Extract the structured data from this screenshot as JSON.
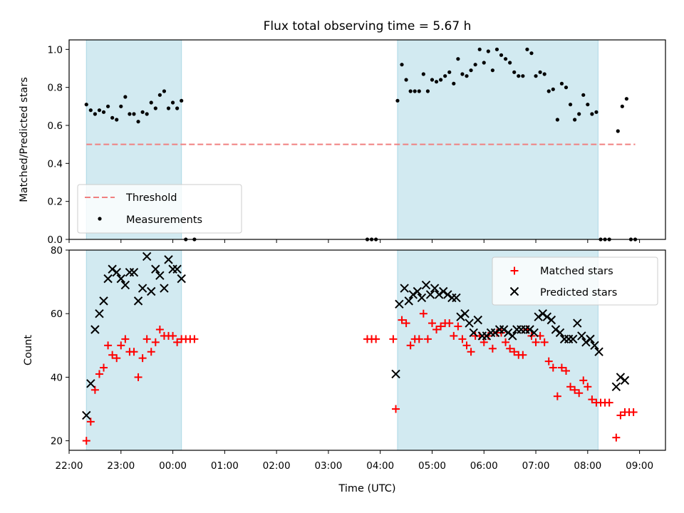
{
  "chart_data": [
    {
      "type": "scatter",
      "title": "Flux total observing time = 5.67 h",
      "ylabel": "Matched/Predicted stars",
      "xlabel": "",
      "xlim": [
        "22:00",
        "09:30"
      ],
      "ylim": [
        0,
        1.05
      ],
      "yticks": [
        0.0,
        0.2,
        0.4,
        0.6,
        0.8,
        1.0
      ],
      "ytick_labels": [
        "0.0",
        "0.2",
        "0.4",
        "0.6",
        "0.8",
        "1.0"
      ],
      "grid": false,
      "legend_position": "lower-left",
      "shaded_intervals": [
        [
          "22:20",
          "00:10"
        ],
        [
          "04:20",
          "08:12"
        ]
      ],
      "threshold": {
        "name": "Threshold",
        "value": 0.5,
        "x_start": "22:20",
        "x_end": "08:55",
        "color": "#f08080"
      },
      "series": [
        {
          "name": "Measurements",
          "color": "#000000",
          "points": [
            [
              "22:20",
              0.71
            ],
            [
              "22:25",
              0.68
            ],
            [
              "22:30",
              0.66
            ],
            [
              "22:35",
              0.68
            ],
            [
              "22:40",
              0.67
            ],
            [
              "22:45",
              0.7
            ],
            [
              "22:50",
              0.64
            ],
            [
              "22:55",
              0.63
            ],
            [
              "23:00",
              0.7
            ],
            [
              "23:05",
              0.75
            ],
            [
              "23:10",
              0.66
            ],
            [
              "23:15",
              0.66
            ],
            [
              "23:20",
              0.62
            ],
            [
              "23:25",
              0.67
            ],
            [
              "23:30",
              0.66
            ],
            [
              "23:35",
              0.72
            ],
            [
              "23:40",
              0.69
            ],
            [
              "23:45",
              0.76
            ],
            [
              "23:50",
              0.78
            ],
            [
              "23:55",
              0.69
            ],
            [
              "00:00",
              0.72
            ],
            [
              "00:05",
              0.69
            ],
            [
              "00:10",
              0.73
            ],
            [
              "00:15",
              0.0
            ],
            [
              "00:25",
              0.0
            ],
            [
              "03:45",
              0.0
            ],
            [
              "03:50",
              0.0
            ],
            [
              "03:55",
              0.0
            ],
            [
              "04:20",
              0.73
            ],
            [
              "04:25",
              0.92
            ],
            [
              "04:30",
              0.84
            ],
            [
              "04:35",
              0.78
            ],
            [
              "04:40",
              0.78
            ],
            [
              "04:45",
              0.78
            ],
            [
              "04:50",
              0.87
            ],
            [
              "04:55",
              0.78
            ],
            [
              "05:00",
              0.84
            ],
            [
              "05:05",
              0.83
            ],
            [
              "05:10",
              0.84
            ],
            [
              "05:15",
              0.86
            ],
            [
              "05:20",
              0.88
            ],
            [
              "05:25",
              0.82
            ],
            [
              "05:30",
              0.95
            ],
            [
              "05:35",
              0.87
            ],
            [
              "05:40",
              0.86
            ],
            [
              "05:45",
              0.89
            ],
            [
              "05:50",
              0.92
            ],
            [
              "05:55",
              1.0
            ],
            [
              "06:00",
              0.93
            ],
            [
              "06:05",
              0.99
            ],
            [
              "06:10",
              0.89
            ],
            [
              "06:15",
              1.0
            ],
            [
              "06:20",
              0.97
            ],
            [
              "06:25",
              0.95
            ],
            [
              "06:30",
              0.93
            ],
            [
              "06:35",
              0.88
            ],
            [
              "06:40",
              0.86
            ],
            [
              "06:45",
              0.86
            ],
            [
              "06:50",
              1.0
            ],
            [
              "06:55",
              0.98
            ],
            [
              "07:00",
              0.86
            ],
            [
              "07:05",
              0.88
            ],
            [
              "07:10",
              0.87
            ],
            [
              "07:15",
              0.78
            ],
            [
              "07:20",
              0.79
            ],
            [
              "07:25",
              0.63
            ],
            [
              "07:30",
              0.82
            ],
            [
              "07:35",
              0.8
            ],
            [
              "07:40",
              0.71
            ],
            [
              "07:45",
              0.63
            ],
            [
              "07:50",
              0.66
            ],
            [
              "07:55",
              0.76
            ],
            [
              "08:00",
              0.71
            ],
            [
              "08:05",
              0.66
            ],
            [
              "08:10",
              0.67
            ],
            [
              "08:15",
              0.0
            ],
            [
              "08:20",
              0.0
            ],
            [
              "08:25",
              0.0
            ],
            [
              "08:35",
              0.57
            ],
            [
              "08:40",
              0.7
            ],
            [
              "08:45",
              0.74
            ],
            [
              "08:50",
              0.0
            ],
            [
              "08:55",
              0.0
            ]
          ]
        }
      ]
    },
    {
      "type": "scatter",
      "title": "",
      "xlabel": "Time (UTC)",
      "ylabel": "Count",
      "xlim": [
        "22:00",
        "09:30"
      ],
      "xticks": [
        "22:00",
        "23:00",
        "00:00",
        "01:00",
        "02:00",
        "03:00",
        "04:00",
        "05:00",
        "06:00",
        "07:00",
        "08:00",
        "09:00"
      ],
      "ylim": [
        17,
        80
      ],
      "yticks": [
        20,
        40,
        60,
        80
      ],
      "ytick_labels": [
        "20",
        "40",
        "60",
        "80"
      ],
      "grid": false,
      "legend_position": "upper-right",
      "shaded_intervals": [
        [
          "22:20",
          "00:10"
        ],
        [
          "04:20",
          "08:12"
        ]
      ],
      "series": [
        {
          "name": "Matched stars",
          "marker": "+",
          "color": "#ff0000",
          "points": [
            [
              "22:20",
              20
            ],
            [
              "22:25",
              26
            ],
            [
              "22:30",
              36
            ],
            [
              "22:35",
              41
            ],
            [
              "22:40",
              43
            ],
            [
              "22:45",
              50
            ],
            [
              "22:50",
              47
            ],
            [
              "22:55",
              46
            ],
            [
              "23:00",
              50
            ],
            [
              "23:05",
              52
            ],
            [
              "23:10",
              48
            ],
            [
              "23:15",
              48
            ],
            [
              "23:20",
              40
            ],
            [
              "23:25",
              46
            ],
            [
              "23:30",
              52
            ],
            [
              "23:35",
              48
            ],
            [
              "23:40",
              51
            ],
            [
              "23:45",
              55
            ],
            [
              "23:50",
              53
            ],
            [
              "23:55",
              53
            ],
            [
              "00:00",
              53
            ],
            [
              "00:05",
              51
            ],
            [
              "00:10",
              52
            ],
            [
              "00:15",
              52
            ],
            [
              "00:20",
              52
            ],
            [
              "00:25",
              52
            ],
            [
              "03:45",
              52
            ],
            [
              "03:50",
              52
            ],
            [
              "03:55",
              52
            ],
            [
              "04:15",
              52
            ],
            [
              "04:18",
              30
            ],
            [
              "04:25",
              58
            ],
            [
              "04:30",
              57
            ],
            [
              "04:35",
              50
            ],
            [
              "04:40",
              52
            ],
            [
              "04:45",
              52
            ],
            [
              "04:50",
              60
            ],
            [
              "04:55",
              52
            ],
            [
              "05:00",
              57
            ],
            [
              "05:05",
              55
            ],
            [
              "05:10",
              56
            ],
            [
              "05:15",
              57
            ],
            [
              "05:20",
              57
            ],
            [
              "05:25",
              53
            ],
            [
              "05:30",
              56
            ],
            [
              "05:35",
              52
            ],
            [
              "05:40",
              50
            ],
            [
              "05:45",
              48
            ],
            [
              "05:50",
              53
            ],
            [
              "05:55",
              53
            ],
            [
              "06:00",
              51
            ],
            [
              "06:05",
              53
            ],
            [
              "06:10",
              49
            ],
            [
              "06:15",
              54
            ],
            [
              "06:20",
              54
            ],
            [
              "06:25",
              51
            ],
            [
              "06:30",
              49
            ],
            [
              "06:35",
              48
            ],
            [
              "06:40",
              47
            ],
            [
              "06:45",
              47
            ],
            [
              "06:50",
              55
            ],
            [
              "06:55",
              53
            ],
            [
              "07:00",
              51
            ],
            [
              "07:05",
              53
            ],
            [
              "07:10",
              51
            ],
            [
              "07:15",
              45
            ],
            [
              "07:20",
              43
            ],
            [
              "07:25",
              34
            ],
            [
              "07:30",
              43
            ],
            [
              "07:35",
              42
            ],
            [
              "07:40",
              37
            ],
            [
              "07:45",
              36
            ],
            [
              "07:50",
              35
            ],
            [
              "07:55",
              39
            ],
            [
              "08:00",
              37
            ],
            [
              "08:05",
              33
            ],
            [
              "08:10",
              32
            ],
            [
              "08:15",
              32
            ],
            [
              "08:20",
              32
            ],
            [
              "08:25",
              32
            ],
            [
              "08:33",
              21
            ],
            [
              "08:38",
              28
            ],
            [
              "08:43",
              29
            ],
            [
              "08:48",
              29
            ],
            [
              "08:53",
              29
            ]
          ]
        },
        {
          "name": "Predicted stars",
          "marker": "x",
          "color": "#000000",
          "points": [
            [
              "22:20",
              28
            ],
            [
              "22:25",
              38
            ],
            [
              "22:30",
              55
            ],
            [
              "22:35",
              60
            ],
            [
              "22:40",
              64
            ],
            [
              "22:45",
              71
            ],
            [
              "22:50",
              74
            ],
            [
              "22:55",
              73
            ],
            [
              "23:00",
              71
            ],
            [
              "23:05",
              69
            ],
            [
              "23:10",
              73
            ],
            [
              "23:15",
              73
            ],
            [
              "23:20",
              64
            ],
            [
              "23:25",
              68
            ],
            [
              "23:30",
              78
            ],
            [
              "23:35",
              67
            ],
            [
              "23:40",
              74
            ],
            [
              "23:45",
              72
            ],
            [
              "23:50",
              68
            ],
            [
              "23:55",
              77
            ],
            [
              "00:00",
              74
            ],
            [
              "00:05",
              74
            ],
            [
              "00:10",
              71
            ],
            [
              "04:18",
              41
            ],
            [
              "04:22",
              63
            ],
            [
              "04:28",
              68
            ],
            [
              "04:33",
              64
            ],
            [
              "04:38",
              66
            ],
            [
              "04:43",
              67
            ],
            [
              "04:48",
              65
            ],
            [
              "04:53",
              69
            ],
            [
              "04:58",
              66
            ],
            [
              "05:03",
              68
            ],
            [
              "05:08",
              66
            ],
            [
              "05:13",
              67
            ],
            [
              "05:18",
              66
            ],
            [
              "05:23",
              65
            ],
            [
              "05:28",
              65
            ],
            [
              "05:33",
              59
            ],
            [
              "05:38",
              60
            ],
            [
              "05:43",
              57
            ],
            [
              "05:48",
              54
            ],
            [
              "05:53",
              58
            ],
            [
              "05:58",
              53
            ],
            [
              "06:03",
              53
            ],
            [
              "06:08",
              54
            ],
            [
              "06:13",
              54
            ],
            [
              "06:18",
              55
            ],
            [
              "06:23",
              55
            ],
            [
              "06:28",
              54
            ],
            [
              "06:33",
              53
            ],
            [
              "06:38",
              55
            ],
            [
              "06:43",
              55
            ],
            [
              "06:48",
              55
            ],
            [
              "06:53",
              55
            ],
            [
              "06:58",
              54
            ],
            [
              "07:03",
              59
            ],
            [
              "07:08",
              60
            ],
            [
              "07:13",
              59
            ],
            [
              "07:18",
              58
            ],
            [
              "07:23",
              55
            ],
            [
              "07:28",
              54
            ],
            [
              "07:33",
              52
            ],
            [
              "07:38",
              52
            ],
            [
              "07:43",
              52
            ],
            [
              "07:48",
              57
            ],
            [
              "07:53",
              53
            ],
            [
              "07:58",
              51
            ],
            [
              "08:03",
              52
            ],
            [
              "08:08",
              50
            ],
            [
              "08:13",
              48
            ],
            [
              "08:33",
              37
            ],
            [
              "08:38",
              40
            ],
            [
              "08:43",
              39
            ]
          ]
        }
      ]
    }
  ],
  "colors": {
    "shade": "#add8e6",
    "matched": "#ff0000",
    "predicted": "#000000",
    "threshold": "#f08080"
  }
}
